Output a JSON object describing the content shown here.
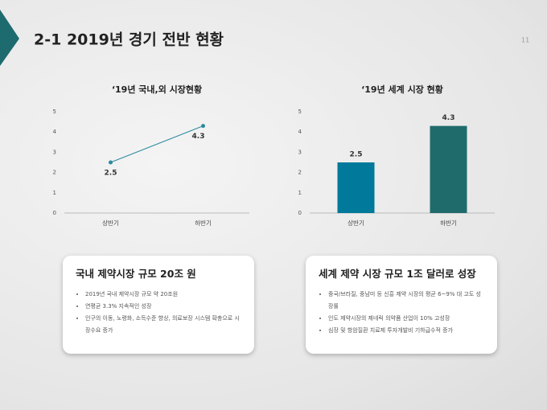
{
  "slide": {
    "title": "2-1 2019년 경기 전반 현황",
    "page_number": "11"
  },
  "chart_data": [
    {
      "type": "line",
      "title": "‘19년 국내,외 시장현황",
      "categories": [
        "상반기",
        "하반기"
      ],
      "values": [
        2.5,
        4.3
      ],
      "color": "#2b8a9c",
      "ylim": [
        0,
        5
      ],
      "yticks": [
        0,
        1,
        2,
        3,
        4,
        5
      ]
    },
    {
      "type": "bar",
      "title": "‘19년 세계 시장 현황",
      "categories": [
        "상반기",
        "하반기"
      ],
      "values": [
        2.5,
        4.3
      ],
      "colors": [
        "#00799a",
        "#1f6b6b"
      ],
      "ylim": [
        0,
        5
      ],
      "yticks": [
        0,
        1,
        2,
        3,
        4,
        5
      ]
    }
  ],
  "boxes": [
    {
      "title": "국내 제약시장 규모 20조 원",
      "bullets": [
        "2019년 국내 제약시장 규모 약 20조원",
        "연평균 3.3% 지속적인 성장",
        "인구의 이동, 노령화, 소득수준 향상, 의료보장 시스템 확충으로 시장수요 증가"
      ]
    },
    {
      "title": "세계 제약 시장 규모 1조 달러로 성장",
      "bullets": [
        "중국/브라질, 중남미 등 신흥 제약 시장의 평균 6~9% 대 고도 성장률",
        "인도 제약시장의 제네릭 의약품 산업이 10% 고성장",
        "심장 및 항암질환 치료제 투자개발비 기하급수적 증가"
      ]
    }
  ]
}
